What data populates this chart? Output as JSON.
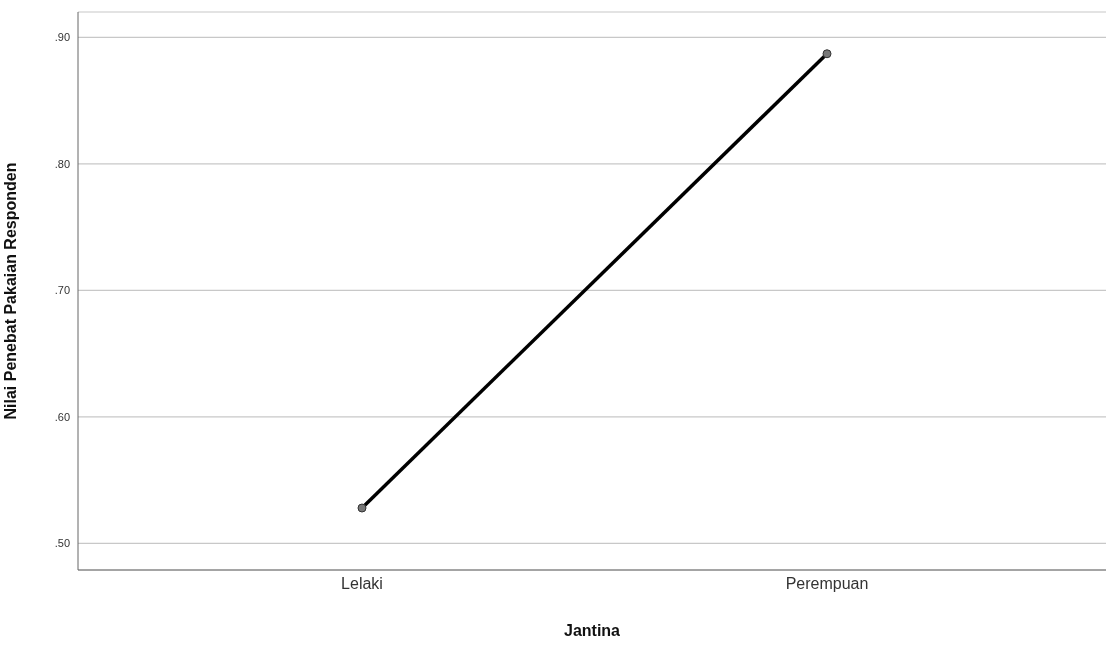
{
  "chart_data": {
    "type": "line",
    "xlabel": "Jantina",
    "ylabel": "Nilai Penebat Pakaian Responden",
    "categories": [
      "Lelaki",
      "Perempuan"
    ],
    "series": [
      {
        "color": "#000000",
        "values": [
          0.528,
          0.887
        ]
      }
    ],
    "ylim": [
      0.479,
      0.92
    ],
    "yticks": [
      {
        "value": 0.5,
        "label": ".50"
      },
      {
        "value": 0.6,
        "label": ".60"
      },
      {
        "value": 0.7,
        "label": ".70"
      },
      {
        "value": 0.8,
        "label": ".80"
      },
      {
        "value": 0.9,
        "label": ".90"
      }
    ],
    "grid": "y",
    "marker": "circle",
    "line_style": "solid"
  }
}
